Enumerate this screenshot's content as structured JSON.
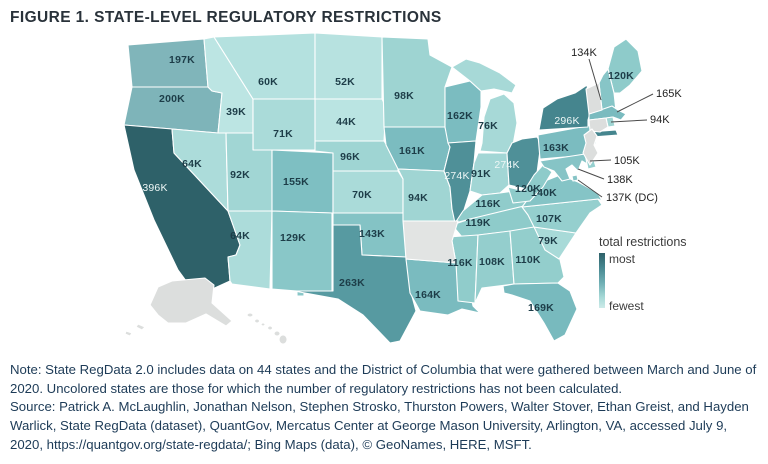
{
  "figure": {
    "title": "FIGURE 1. STATE-LEVEL REGULATORY RESTRICTIONS",
    "note": "Note: State RegData 2.0 includes data on 44 states and the District of Columbia that were gathered between March and June of 2020. Uncolored states are those for which the number of regulatory restrictions has not been calculated.",
    "source": "Source: Patrick A. McLaughlin, Jonathan Nelson, Stephen Strosko, Thurston Powers, Walter Stover, Ethan Greist, and Hayden Warlick, State RegData (dataset), QuantGov, Mercatus Center at George Mason University, Arlington, VA, accessed July 9, 2020, https://quantgov.org/state-regdata/; Bing Maps (data), © GeoNames, HERE, MSFT."
  },
  "chart_data": {
    "type": "choropleth",
    "title": "FIGURE 1. STATE-LEVEL REGULATORY RESTRICTIONS",
    "unit": "total regulatory restrictions (K = thousands)",
    "legend": {
      "title": "total restrictions",
      "top_label": "most",
      "bottom_label": "fewest",
      "color_most": "#2e6169",
      "color_fewest": "#cdebe9"
    },
    "uncolored_color": "#dcdedd",
    "uncolored_states": [
      "AK",
      "HI",
      "AR",
      "VT",
      "CT",
      "NJ"
    ],
    "states": [
      {
        "abbr": "WA",
        "name": "Washington",
        "label": "197K",
        "value": 197,
        "color": "#80b5ba"
      },
      {
        "abbr": "OR",
        "name": "Oregon",
        "label": "200K",
        "value": 200,
        "color": "#7eb4b9"
      },
      {
        "abbr": "CA",
        "name": "California",
        "label": "396K",
        "value": 396,
        "color": "#2e6169",
        "label_color": "light"
      },
      {
        "abbr": "NV",
        "name": "Nevada",
        "label": "64K",
        "value": 64,
        "color": "#acdcda"
      },
      {
        "abbr": "ID",
        "name": "Idaho",
        "label": "39K",
        "value": 39,
        "color": "#bce5e3"
      },
      {
        "abbr": "MT",
        "name": "Montana",
        "label": "60K",
        "value": 60,
        "color": "#b4e1df"
      },
      {
        "abbr": "WY",
        "name": "Wyoming",
        "label": "71K",
        "value": 71,
        "color": "#aadbd9"
      },
      {
        "abbr": "UT",
        "name": "Utah",
        "label": "92K",
        "value": 92,
        "color": "#a1d6d4"
      },
      {
        "abbr": "CO",
        "name": "Colorado",
        "label": "155K",
        "value": 155,
        "color": "#7ebfc2"
      },
      {
        "abbr": "AZ",
        "name": "Arizona",
        "label": "64K",
        "value": 64,
        "color": "#acdcda"
      },
      {
        "abbr": "NM",
        "name": "New Mexico",
        "label": "129K",
        "value": 129,
        "color": "#89c7c8"
      },
      {
        "abbr": "ND",
        "name": "North Dakota",
        "label": "52K",
        "value": 52,
        "color": "#b7e2e0"
      },
      {
        "abbr": "SD",
        "name": "South Dakota",
        "label": "44K",
        "value": 44,
        "color": "#bae4e2"
      },
      {
        "abbr": "NE",
        "name": "Nebraska",
        "label": "96K",
        "value": 96,
        "color": "#9fd5d3"
      },
      {
        "abbr": "KS",
        "name": "Kansas",
        "label": "70K",
        "value": 70,
        "color": "#aadbd9"
      },
      {
        "abbr": "OK",
        "name": "Oklahoma",
        "label": "143K",
        "value": 143,
        "color": "#84c3c5"
      },
      {
        "abbr": "TX",
        "name": "Texas",
        "label": "263K",
        "value": 263,
        "color": "#579aa1"
      },
      {
        "abbr": "MN",
        "name": "Minnesota",
        "label": "98K",
        "value": 98,
        "color": "#9ed4d2"
      },
      {
        "abbr": "IA",
        "name": "Iowa",
        "label": "161K",
        "value": 161,
        "color": "#7bbcc0"
      },
      {
        "abbr": "MO",
        "name": "Missouri",
        "label": "94K",
        "value": 94,
        "color": "#a0d5d3"
      },
      {
        "abbr": "LA",
        "name": "Louisiana",
        "label": "164K",
        "value": 164,
        "color": "#7abbbf"
      },
      {
        "abbr": "WI",
        "name": "Wisconsin",
        "label": "162K",
        "value": 162,
        "color": "#7bbcc0"
      },
      {
        "abbr": "IL",
        "name": "Illinois",
        "label": "274K",
        "value": 274,
        "color": "#4f9098",
        "label_color": "light"
      },
      {
        "abbr": "MI",
        "name": "Michigan",
        "label": "76K",
        "value": 76,
        "color": "#a7d9d7"
      },
      {
        "abbr": "IN",
        "name": "Indiana",
        "label": "91K",
        "value": 91,
        "color": "#a2d6d5"
      },
      {
        "abbr": "OH",
        "name": "Ohio",
        "label": "274K",
        "value": 274,
        "color": "#4f9098",
        "label_color": "light"
      },
      {
        "abbr": "KY",
        "name": "Kentucky",
        "label": "116K",
        "value": 116,
        "color": "#90cccb"
      },
      {
        "abbr": "TN",
        "name": "Tennessee",
        "label": "119K",
        "value": 119,
        "color": "#8ecbca"
      },
      {
        "abbr": "MS",
        "name": "Mississippi",
        "label": "116K",
        "value": 116,
        "color": "#90cccb"
      },
      {
        "abbr": "AL",
        "name": "Alabama",
        "label": "108K",
        "value": 108,
        "color": "#94cecd"
      },
      {
        "abbr": "GA",
        "name": "Georgia",
        "label": "110K",
        "value": 110,
        "color": "#93cecc"
      },
      {
        "abbr": "FL",
        "name": "Florida",
        "label": "169K",
        "value": 169,
        "color": "#78babe"
      },
      {
        "abbr": "SC",
        "name": "South Carolina",
        "label": "79K",
        "value": 79,
        "color": "#a8dad8"
      },
      {
        "abbr": "NC",
        "name": "North Carolina",
        "label": "107K",
        "value": 107,
        "color": "#95cfce"
      },
      {
        "abbr": "VA",
        "name": "Virginia",
        "label": "140K",
        "value": 140,
        "color": "#85c4c6"
      },
      {
        "abbr": "WV",
        "name": "West Virginia",
        "label": "120K",
        "value": 120,
        "color": "#8ecbca"
      },
      {
        "abbr": "PA",
        "name": "Pennsylvania",
        "label": "163K",
        "value": 163,
        "color": "#7bbcc0"
      },
      {
        "abbr": "NY",
        "name": "New York",
        "label": "296K",
        "value": 296,
        "color": "#45858e",
        "label_color": "light"
      },
      {
        "abbr": "ME",
        "name": "Maine",
        "label": "120K",
        "value": 120,
        "color": "#8ecbca"
      },
      {
        "abbr": "NH",
        "name": "New Hampshire",
        "label": "134K",
        "value": 134,
        "color": "#87c5c7"
      },
      {
        "abbr": "MA",
        "name": "Massachusetts",
        "label": "165K",
        "value": 165,
        "color": "#7abbbf"
      },
      {
        "abbr": "RI",
        "name": "Rhode Island",
        "label": "94K",
        "value": 94,
        "color": "#a0d5d3"
      },
      {
        "abbr": "MD",
        "name": "Maryland",
        "label": "138K",
        "value": 138,
        "color": "#86c4c6"
      },
      {
        "abbr": "DE",
        "name": "Delaware",
        "label": "105K",
        "value": 105,
        "color": "#96d0cf"
      },
      {
        "abbr": "DC",
        "name": "District of Columbia",
        "label": "137K (DC)",
        "value": 137,
        "color": "#86c4c6"
      },
      {
        "abbr": "AK",
        "name": "Alaska",
        "label": null,
        "value": null,
        "color": "#dcdedd"
      },
      {
        "abbr": "HI",
        "name": "Hawaii",
        "label": null,
        "value": null,
        "color": "#dcdedd"
      },
      {
        "abbr": "AR",
        "name": "Arkansas",
        "label": null,
        "value": null,
        "color": "#e2e4e3"
      },
      {
        "abbr": "VT",
        "name": "Vermont",
        "label": null,
        "value": null,
        "color": "#dcdedd"
      },
      {
        "abbr": "CT",
        "name": "Connecticut",
        "label": null,
        "value": null,
        "color": "#dcdedd"
      },
      {
        "abbr": "NJ",
        "name": "New Jersey",
        "label": null,
        "value": null,
        "color": "#dcdedd"
      }
    ],
    "callouts": [
      {
        "abbr": "NH",
        "label": "134K"
      },
      {
        "abbr": "MA",
        "label": "165K"
      },
      {
        "abbr": "RI",
        "label": "94K"
      },
      {
        "abbr": "DE",
        "label": "105K"
      },
      {
        "abbr": "MD",
        "label": "138K"
      },
      {
        "abbr": "DC",
        "label": "137K (DC)"
      }
    ]
  }
}
